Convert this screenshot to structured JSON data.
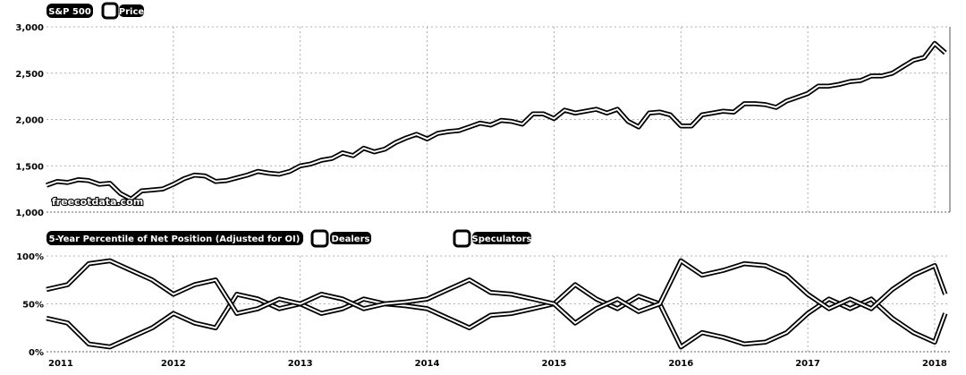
{
  "watermark": "freecotdata.com",
  "chart_data": [
    {
      "type": "line",
      "title": "S&P 500",
      "legend": [
        "Price"
      ],
      "legend_placement": "top-left",
      "grid": true,
      "ylim": [
        1000,
        3000
      ],
      "yticks": [
        1000,
        1500,
        2000,
        2500,
        3000
      ],
      "ytick_labels": [
        "1,000",
        "1,500",
        "2,000",
        "2,500",
        "3,000"
      ],
      "x_range": [
        "2011-01",
        "2018-02"
      ],
      "series": [
        {
          "name": "Price",
          "x": [
            "2011-01",
            "2011-02",
            "2011-03",
            "2011-04",
            "2011-05",
            "2011-06",
            "2011-07",
            "2011-08",
            "2011-09",
            "2011-10",
            "2011-11",
            "2011-12",
            "2012-01",
            "2012-02",
            "2012-03",
            "2012-04",
            "2012-05",
            "2012-06",
            "2012-07",
            "2012-08",
            "2012-09",
            "2012-10",
            "2012-11",
            "2012-12",
            "2013-01",
            "2013-02",
            "2013-03",
            "2013-04",
            "2013-05",
            "2013-06",
            "2013-07",
            "2013-08",
            "2013-09",
            "2013-10",
            "2013-11",
            "2013-12",
            "2014-01",
            "2014-02",
            "2014-03",
            "2014-04",
            "2014-05",
            "2014-06",
            "2014-07",
            "2014-08",
            "2014-09",
            "2014-10",
            "2014-11",
            "2014-12",
            "2015-01",
            "2015-02",
            "2015-03",
            "2015-04",
            "2015-05",
            "2015-06",
            "2015-07",
            "2015-08",
            "2015-09",
            "2015-10",
            "2015-11",
            "2015-12",
            "2016-01",
            "2016-02",
            "2016-03",
            "2016-04",
            "2016-05",
            "2016-06",
            "2016-07",
            "2016-08",
            "2016-09",
            "2016-10",
            "2016-11",
            "2016-12",
            "2017-01",
            "2017-02",
            "2017-03",
            "2017-04",
            "2017-05",
            "2017-06",
            "2017-07",
            "2017-08",
            "2017-09",
            "2017-10",
            "2017-11",
            "2017-12",
            "2018-01",
            "2018-02"
          ],
          "values": [
            1290,
            1330,
            1320,
            1350,
            1340,
            1300,
            1310,
            1200,
            1140,
            1230,
            1240,
            1250,
            1300,
            1360,
            1400,
            1390,
            1330,
            1340,
            1370,
            1400,
            1440,
            1420,
            1410,
            1440,
            1500,
            1520,
            1560,
            1580,
            1640,
            1610,
            1690,
            1650,
            1680,
            1750,
            1800,
            1840,
            1790,
            1850,
            1870,
            1880,
            1920,
            1960,
            1940,
            1990,
            1980,
            1950,
            2060,
            2060,
            2010,
            2100,
            2070,
            2090,
            2110,
            2070,
            2110,
            1980,
            1920,
            2070,
            2080,
            2050,
            1930,
            1930,
            2050,
            2070,
            2090,
            2080,
            2170,
            2170,
            2160,
            2130,
            2200,
            2240,
            2280,
            2360,
            2360,
            2380,
            2410,
            2420,
            2470,
            2470,
            2500,
            2570,
            2640,
            2670,
            2820,
            2720
          ]
        }
      ]
    },
    {
      "type": "line",
      "title": "5-Year Percentile of Net Position (Adjusted for OI)",
      "legend": [
        "Dealers",
        "Speculators"
      ],
      "legend_placement": "top",
      "grid": true,
      "ylim": [
        0,
        100
      ],
      "yticks": [
        0,
        50,
        100
      ],
      "ytick_labels": [
        "0%",
        "50%",
        "100%"
      ],
      "x_ticks": [
        "2011",
        "2012",
        "2013",
        "2014",
        "2015",
        "2016",
        "2017",
        "2018"
      ],
      "series": [
        {
          "name": "Dealers",
          "x": [
            "2011-01",
            "2011-03",
            "2011-05",
            "2011-07",
            "2011-09",
            "2011-11",
            "2012-01",
            "2012-03",
            "2012-05",
            "2012-07",
            "2012-09",
            "2012-11",
            "2013-01",
            "2013-03",
            "2013-05",
            "2013-07",
            "2013-09",
            "2013-11",
            "2014-01",
            "2014-03",
            "2014-05",
            "2014-07",
            "2014-09",
            "2014-11",
            "2015-01",
            "2015-03",
            "2015-05",
            "2015-07",
            "2015-09",
            "2015-11",
            "2016-01",
            "2016-03",
            "2016-05",
            "2016-07",
            "2016-09",
            "2016-11",
            "2017-01",
            "2017-03",
            "2017-05",
            "2017-07",
            "2017-09",
            "2017-11",
            "2018-01",
            "2018-02"
          ],
          "values": [
            35,
            30,
            8,
            5,
            15,
            25,
            40,
            30,
            25,
            60,
            55,
            45,
            50,
            40,
            45,
            55,
            50,
            48,
            45,
            35,
            25,
            38,
            40,
            45,
            50,
            70,
            55,
            45,
            58,
            50,
            5,
            20,
            15,
            8,
            10,
            20,
            40,
            55,
            45,
            55,
            35,
            20,
            10,
            40
          ]
        },
        {
          "name": "Speculators",
          "x": [
            "2011-01",
            "2011-03",
            "2011-05",
            "2011-07",
            "2011-09",
            "2011-11",
            "2012-01",
            "2012-03",
            "2012-05",
            "2012-07",
            "2012-09",
            "2012-11",
            "2013-01",
            "2013-03",
            "2013-05",
            "2013-07",
            "2013-09",
            "2013-11",
            "2014-01",
            "2014-03",
            "2014-05",
            "2014-07",
            "2014-09",
            "2014-11",
            "2015-01",
            "2015-03",
            "2015-05",
            "2015-07",
            "2015-09",
            "2015-11",
            "2016-01",
            "2016-03",
            "2016-05",
            "2016-07",
            "2016-09",
            "2016-11",
            "2017-01",
            "2017-03",
            "2017-05",
            "2017-07",
            "2017-09",
            "2017-11",
            "2018-01",
            "2018-02"
          ],
          "values": [
            65,
            70,
            92,
            95,
            85,
            75,
            60,
            70,
            75,
            40,
            45,
            55,
            50,
            60,
            55,
            45,
            50,
            52,
            55,
            65,
            75,
            62,
            60,
            55,
            50,
            30,
            45,
            55,
            42,
            50,
            95,
            80,
            85,
            92,
            90,
            80,
            60,
            45,
            55,
            45,
            65,
            80,
            90,
            60
          ]
        }
      ]
    }
  ]
}
